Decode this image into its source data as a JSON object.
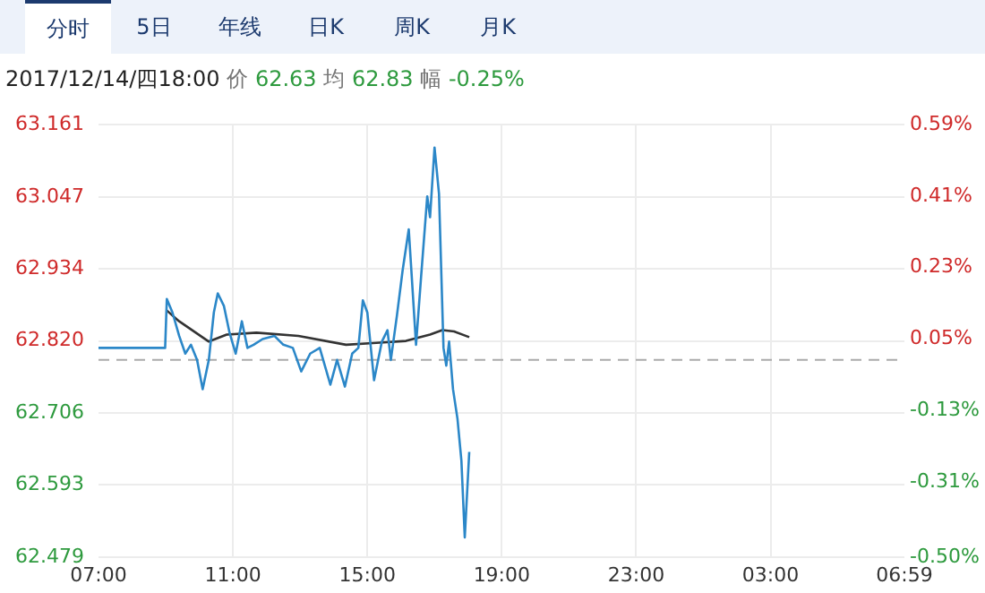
{
  "chart_data": {
    "type": "line",
    "subtitle": "2017/12/14/四18:00 价 62.63 均 62.83 幅 -0.25%",
    "annotations": [
      "分时",
      "5日",
      "年线",
      "日K",
      "周K",
      "月K"
    ],
    "xlim": [
      "2017-12-14T07:00",
      "2017-12-15T06:59"
    ],
    "xticks": [
      {
        "value": "2017-12-14T07:00",
        "label": "07:00"
      },
      {
        "value": "2017-12-14T11:00",
        "label": "11:00"
      },
      {
        "value": "2017-12-14T15:00",
        "label": "15:00"
      },
      {
        "value": "2017-12-14T19:00",
        "label": "19:00"
      },
      {
        "value": "2017-12-14T23:00",
        "label": "23:00"
      },
      {
        "value": "2017-12-15T03:00",
        "label": "03:00"
      },
      {
        "value": "2017-12-15T06:59",
        "label": "06:59"
      }
    ],
    "ylim": [
      62.479,
      63.161
    ],
    "yticks": [
      {
        "value": 62.479,
        "label": "62.479"
      },
      {
        "value": 62.593,
        "label": "62.593"
      },
      {
        "value": 62.706,
        "label": "62.706"
      },
      {
        "value": 62.82,
        "label": "62.820"
      },
      {
        "value": 62.934,
        "label": "62.934"
      },
      {
        "value": 63.047,
        "label": "63.047"
      },
      {
        "value": 63.161,
        "label": "63.161"
      }
    ],
    "y2lim": [
      -0.5,
      0.59
    ],
    "y2ticks": [
      {
        "value": -0.5,
        "label": "-0.50%"
      },
      {
        "value": -0.31,
        "label": "-0.31%"
      },
      {
        "value": -0.13,
        "label": "-0.13%"
      },
      {
        "value": 0.05,
        "label": "0.05%"
      },
      {
        "value": 0.23,
        "label": "0.23%"
      },
      {
        "value": 0.41,
        "label": "0.41%"
      },
      {
        "value": 0.59,
        "label": "0.59%"
      }
    ],
    "grid": true,
    "legend": false,
    "marker": "none",
    "line_style": "solid",
    "ref_lines": [
      {
        "axis": "y",
        "value": 62.79,
        "color": "#aaaaaa",
        "line_style": "dashed"
      }
    ],
    "series": [
      {
        "color": "#2b87c8",
        "x": [
          "2017-12-14T07:00",
          "2017-12-14T08:59",
          "2017-12-14T09:02",
          "2017-12-14T09:12",
          "2017-12-14T09:24",
          "2017-12-14T09:35",
          "2017-12-14T09:45",
          "2017-12-14T09:56",
          "2017-12-14T10:06",
          "2017-12-14T10:17",
          "2017-12-14T10:26",
          "2017-12-14T10:33",
          "2017-12-14T10:44",
          "2017-12-14T10:54",
          "2017-12-14T11:05",
          "2017-12-14T11:16",
          "2017-12-14T11:26",
          "2017-12-14T11:37",
          "2017-12-14T11:53",
          "2017-12-14T12:14",
          "2017-12-14T12:30",
          "2017-12-14T12:47",
          "2017-12-14T13:02",
          "2017-12-14T13:18",
          "2017-12-14T13:35",
          "2017-12-14T13:54",
          "2017-12-14T14:06",
          "2017-12-14T14:20",
          "2017-12-14T14:33",
          "2017-12-14T14:44",
          "2017-12-14T14:52",
          "2017-12-14T15:00",
          "2017-12-14T15:12",
          "2017-12-14T15:26",
          "2017-12-14T15:36",
          "2017-12-14T15:42",
          "2017-12-14T15:53",
          "2017-12-14T16:03",
          "2017-12-14T16:14",
          "2017-12-14T16:27",
          "2017-12-14T16:36",
          "2017-12-14T16:47",
          "2017-12-14T16:52",
          "2017-12-14T17:00",
          "2017-12-14T17:08",
          "2017-12-14T17:16",
          "2017-12-14T17:21",
          "2017-12-14T17:26",
          "2017-12-14T17:33",
          "2017-12-14T17:41",
          "2017-12-14T17:48",
          "2017-12-14T17:54",
          "2017-12-14T18:02"
        ],
        "values": [
          62.809,
          62.809,
          62.886,
          62.865,
          62.828,
          62.8,
          62.814,
          62.79,
          62.744,
          62.79,
          62.865,
          62.895,
          62.875,
          62.833,
          62.8,
          62.851,
          62.809,
          62.814,
          62.823,
          62.828,
          62.814,
          62.809,
          62.772,
          62.8,
          62.809,
          62.751,
          62.79,
          62.748,
          62.8,
          62.809,
          62.884,
          62.865,
          62.758,
          62.819,
          62.837,
          62.79,
          62.861,
          62.931,
          62.996,
          62.814,
          62.921,
          63.048,
          63.015,
          63.125,
          63.052,
          62.809,
          62.781,
          62.819,
          62.744,
          62.697,
          62.631,
          62.51,
          62.645
        ]
      },
      {
        "color": "#333333",
        "x": [
          "2017-12-14T09:02",
          "2017-12-14T09:24",
          "2017-12-14T10:17",
          "2017-12-14T10:49",
          "2017-12-14T11:42",
          "2017-12-14T12:57",
          "2017-12-14T14:22",
          "2017-12-14T15:16",
          "2017-12-14T16:09",
          "2017-12-14T16:52",
          "2017-12-14T17:14",
          "2017-12-14T17:35",
          "2017-12-14T18:02"
        ],
        "values": [
          62.868,
          62.851,
          62.819,
          62.83,
          62.833,
          62.828,
          62.814,
          62.817,
          62.82,
          62.83,
          62.837,
          62.835,
          62.826
        ]
      }
    ]
  }
}
